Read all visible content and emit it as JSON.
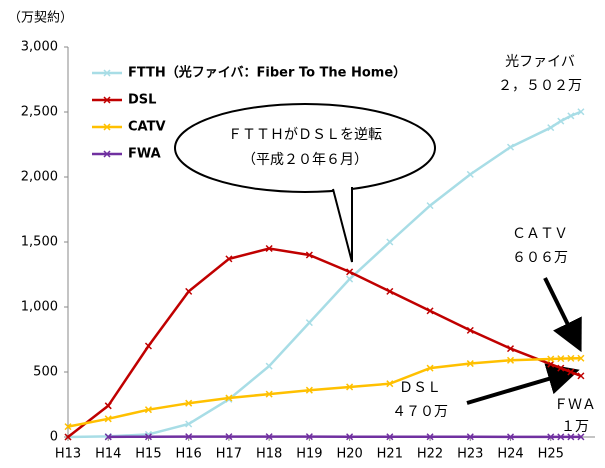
{
  "chart_data": {
    "type": "line",
    "y_unit": "（万契約）",
    "xlim": [
      13,
      26.1
    ],
    "xticks": [
      {
        "value": 13,
        "label": "H13"
      },
      {
        "value": 14,
        "label": "H14"
      },
      {
        "value": 15,
        "label": "H15"
      },
      {
        "value": 16,
        "label": "H16"
      },
      {
        "value": 17,
        "label": "H17"
      },
      {
        "value": 18,
        "label": "H18"
      },
      {
        "value": 19,
        "label": "H19"
      },
      {
        "value": 20,
        "label": "H20"
      },
      {
        "value": 21,
        "label": "H21"
      },
      {
        "value": 22,
        "label": "H22"
      },
      {
        "value": 23,
        "label": "H23"
      },
      {
        "value": 24,
        "label": "H24"
      },
      {
        "value": 25,
        "label": "H25"
      }
    ],
    "ylim": [
      0,
      3000
    ],
    "yticks": [
      0,
      500,
      {
        "value": 1000,
        "label": "1,000"
      },
      {
        "value": 1500,
        "label": "1,500"
      },
      {
        "value": 2000,
        "label": "2,000"
      },
      {
        "value": 2500,
        "label": "2,500"
      },
      {
        "value": 3000,
        "label": "3,000"
      }
    ],
    "x": [
      13,
      14,
      15,
      16,
      17,
      18,
      19,
      20,
      21,
      22,
      23,
      24,
      25,
      25.25,
      25.5,
      25.75
    ],
    "series": [
      {
        "name": "FTTH（光ファイバ：Fiber To The Home）",
        "color": "#a8dde6",
        "values": [
          0,
          5,
          20,
          100,
          290,
          545,
          880,
          1215,
          1500,
          1780,
          2020,
          2230,
          2380,
          2430,
          2470,
          2502
        ]
      },
      {
        "name": "DSL",
        "color": "#c00000",
        "values": [
          0,
          240,
          700,
          1120,
          1370,
          1450,
          1400,
          1270,
          1120,
          970,
          820,
          680,
          560,
          530,
          500,
          470
        ]
      },
      {
        "name": "CATV",
        "color": "#ffc000",
        "values": [
          80,
          140,
          210,
          260,
          300,
          330,
          360,
          385,
          410,
          530,
          565,
          590,
          600,
          603,
          605,
          606
        ]
      },
      {
        "name": "FWA",
        "color": "#7030a0",
        "values": [
          null,
          1,
          2,
          3,
          3,
          3,
          3,
          2,
          2,
          2,
          2,
          1,
          1,
          1,
          1,
          1
        ]
      }
    ],
    "annotations": {
      "callout": [
        "ＦＴＴＨがＤＳＬを逆転",
        "（平成２０年６月）"
      ],
      "ftth": [
        "光ファイバ",
        "２，５０２万"
      ],
      "catv": [
        "ＣＡＴＶ",
        "６０６万"
      ],
      "dsl": [
        "ＤＳＬ",
        "４７０万"
      ],
      "fwa": [
        "ＦＷＡ",
        "１万"
      ]
    }
  }
}
